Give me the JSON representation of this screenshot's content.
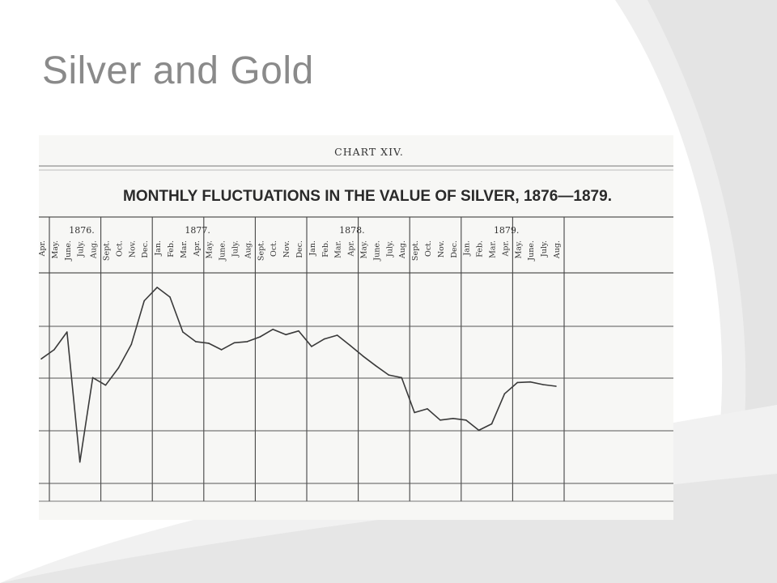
{
  "slide": {
    "title": "Silver and Gold"
  },
  "chart_data": {
    "type": "line",
    "chart_number": "CHART XIV.",
    "title": "MONTHLY FLUCTUATIONS IN THE VALUE OF SILVER, 1876—1879.",
    "years": [
      {
        "label": "1876.",
        "start_index": 0
      },
      {
        "label": "1877.",
        "start_index": 9
      },
      {
        "label": "1878.",
        "start_index": 21
      },
      {
        "label": "1879.",
        "start_index": 33
      }
    ],
    "categories": [
      "Apr.",
      "May.",
      "June.",
      "July.",
      "Aug.",
      "Sept.",
      "Oct.",
      "Nov.",
      "Dec.",
      "Jan.",
      "Feb.",
      "Mar.",
      "Apr.",
      "May.",
      "June.",
      "July.",
      "Aug.",
      "Sept.",
      "Oct.",
      "Nov.",
      "Dec.",
      "Jan.",
      "Feb.",
      "Mar.",
      "Apr.",
      "May.",
      "June.",
      "July.",
      "Aug.",
      "Sept.",
      "Oct.",
      "Nov.",
      "Dec.",
      "Jan.",
      "Feb.",
      "Mar.",
      "Apr.",
      "May.",
      "June.",
      "July.",
      "Aug."
    ],
    "series": [
      {
        "values": [
          0.3,
          0.47,
          0.8,
          -1.62,
          -0.05,
          -0.19,
          0.13,
          0.57,
          1.38,
          1.63,
          1.45,
          0.8,
          0.62,
          0.59,
          0.47,
          0.6,
          0.62,
          0.71,
          0.85,
          0.75,
          0.82,
          0.53,
          0.67,
          0.74,
          0.55,
          0.35,
          0.17,
          0.0,
          -0.05,
          -0.7,
          -0.63,
          -0.84,
          -0.81,
          -0.84,
          -1.03,
          -0.91,
          -0.35,
          -0.14,
          -0.13,
          -0.18,
          -0.21
        ]
      }
    ],
    "ylim": [
      -2.35,
      1.9
    ],
    "grid": true
  }
}
